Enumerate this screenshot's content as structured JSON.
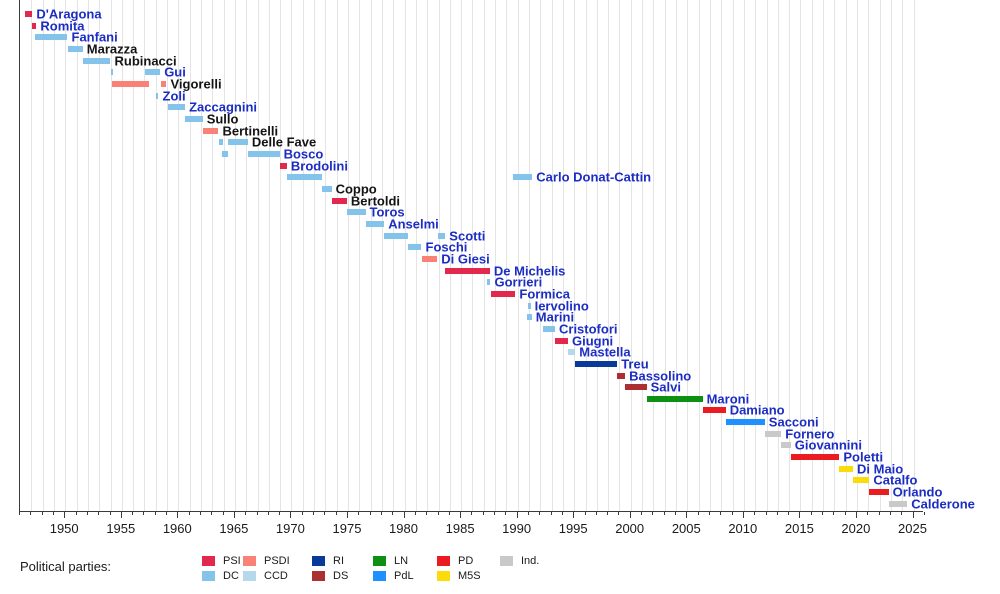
{
  "legend": {
    "title": "Political parties:",
    "rows": [
      [
        {
          "code": "PSI",
          "color": "#e2294d"
        },
        {
          "code": "PSDI",
          "color": "#fa8175"
        },
        {
          "code": "RI",
          "color": "#0a3a99"
        },
        {
          "code": "LN",
          "color": "#0d9014"
        },
        {
          "code": "PD",
          "color": "#ea1c22"
        },
        {
          "code": "Ind.",
          "color": "#c9c9c9"
        }
      ],
      [
        {
          "code": "DC",
          "color": "#85c4ea"
        },
        {
          "code": "CCD",
          "color": "#b5d8ed"
        },
        {
          "code": "DS",
          "color": "#ac2f32"
        },
        {
          "code": "PdL",
          "color": "#1e90ff"
        },
        {
          "code": "M5S",
          "color": "#fbdb09"
        }
      ]
    ]
  },
  "chart_data": {
    "type": "timeline",
    "xlim": [
      1946,
      2026
    ],
    "x_axis": {
      "major_ticks": [
        "1950",
        "1955",
        "1960",
        "1965",
        "1970",
        "1975",
        "1980",
        "1985",
        "1990",
        "1995",
        "2000",
        "2005",
        "2010",
        "2015",
        "2020",
        "2025"
      ],
      "minor_tick_interval_years": 1,
      "grid": "vertical, one line per year"
    },
    "party_colors": {
      "PSI": "#e2294d",
      "DC": "#85c4ea",
      "PSDI": "#fa8175",
      "CCD": "#b5d8ed",
      "RI": "#0a3a99",
      "DS": "#ac2f32",
      "LN": "#0d9014",
      "PdL": "#1e90ff",
      "PD": "#ea1c22",
      "M5S": "#fbdb09",
      "Ind.": "#c9c9c9"
    },
    "label_colors": {
      "link": "#1c2dc4",
      "plain": "#141414"
    },
    "ministers": [
      {
        "name": "D'Aragona",
        "party": "PSI",
        "link": true,
        "terms": [
          [
            1946.45,
            1947.1
          ]
        ]
      },
      {
        "name": "Romita",
        "party": "PSI",
        "link": true,
        "terms": [
          [
            1947.1,
            1947.45
          ]
        ]
      },
      {
        "name": "Fanfani",
        "party": "DC",
        "link": true,
        "terms": [
          [
            1947.3,
            1950.2
          ]
        ]
      },
      {
        "name": "Marazza",
        "party": "DC",
        "link": false,
        "terms": [
          [
            1950.2,
            1951.55
          ]
        ]
      },
      {
        "name": "Rubinacci",
        "party": "DC",
        "link": false,
        "terms": [
          [
            1951.55,
            1954.0
          ]
        ]
      },
      {
        "name": "Gui",
        "party": "DC",
        "link": true,
        "terms": [
          [
            1954.0,
            1954.15
          ],
          [
            1957.05,
            1958.4
          ]
        ]
      },
      {
        "name": "Vigorelli",
        "party": "PSDI",
        "link": false,
        "terms": [
          [
            1954.15,
            1957.4
          ],
          [
            1958.45,
            1958.95
          ]
        ]
      },
      {
        "name": "Zoli",
        "party": "DC",
        "link": true,
        "terms": [
          [
            1958.0,
            1958.25
          ]
        ]
      },
      {
        "name": "Zaccagnini",
        "party": "DC",
        "link": true,
        "terms": [
          [
            1959.1,
            1960.6
          ]
        ]
      },
      {
        "name": "Sullo",
        "party": "DC",
        "link": false,
        "terms": [
          [
            1960.6,
            1962.15
          ]
        ]
      },
      {
        "name": "Bertinelli",
        "party": "PSDI",
        "link": false,
        "terms": [
          [
            1962.15,
            1963.55
          ]
        ]
      },
      {
        "name": "Delle Fave",
        "party": "DC",
        "link": false,
        "terms": [
          [
            1963.55,
            1963.9
          ],
          [
            1964.4,
            1966.15
          ]
        ]
      },
      {
        "name": "Bosco",
        "party": "DC",
        "link": true,
        "terms": [
          [
            1963.9,
            1964.4
          ],
          [
            1966.15,
            1968.95
          ]
        ]
      },
      {
        "name": "Brodolini",
        "party": "PSI",
        "link": true,
        "terms": [
          [
            1968.95,
            1969.6
          ]
        ]
      },
      {
        "name": "Carlo Donat-Cattin",
        "party": "DC",
        "link": true,
        "terms": [
          [
            1969.6,
            1972.7
          ],
          [
            1989.55,
            1991.3
          ]
        ]
      },
      {
        "name": "Coppo",
        "party": "DC",
        "link": false,
        "terms": [
          [
            1972.7,
            1973.55
          ]
        ]
      },
      {
        "name": "Bertoldi",
        "party": "PSI",
        "link": false,
        "terms": [
          [
            1973.55,
            1974.9
          ]
        ]
      },
      {
        "name": "Toros",
        "party": "DC",
        "link": true,
        "terms": [
          [
            1974.9,
            1976.55
          ]
        ]
      },
      {
        "name": "Anselmi",
        "party": "DC",
        "link": true,
        "terms": [
          [
            1976.55,
            1978.2
          ]
        ]
      },
      {
        "name": "Scotti",
        "party": "DC",
        "link": true,
        "terms": [
          [
            1978.2,
            1980.3
          ],
          [
            1982.95,
            1983.6
          ]
        ]
      },
      {
        "name": "Foschi",
        "party": "DC",
        "link": true,
        "terms": [
          [
            1980.3,
            1981.5
          ]
        ]
      },
      {
        "name": "Di Giesi",
        "party": "PSDI",
        "link": true,
        "terms": [
          [
            1981.55,
            1982.9
          ]
        ]
      },
      {
        "name": "De Michelis",
        "party": "PSI",
        "link": true,
        "terms": [
          [
            1983.6,
            1987.55
          ]
        ]
      },
      {
        "name": "Gorrieri",
        "party": "DC",
        "link": true,
        "terms": [
          [
            1987.3,
            1987.6
          ]
        ]
      },
      {
        "name": "Formica",
        "party": "PSI",
        "link": true,
        "terms": [
          [
            1987.6,
            1989.8
          ]
        ]
      },
      {
        "name": "Iervolino",
        "party": "DC",
        "link": true,
        "terms": [
          [
            1990.95,
            1991.15
          ]
        ]
      },
      {
        "name": "Marini",
        "party": "DC",
        "link": true,
        "terms": [
          [
            1990.85,
            1991.25
          ]
        ]
      },
      {
        "name": "Cristofori",
        "party": "DC",
        "link": true,
        "terms": [
          [
            1992.25,
            1993.3
          ]
        ]
      },
      {
        "name": "Giugni",
        "party": "PSI",
        "link": true,
        "terms": [
          [
            1993.3,
            1994.45
          ]
        ]
      },
      {
        "name": "Mastella",
        "party": "CCD",
        "link": true,
        "terms": [
          [
            1994.45,
            1995.1
          ]
        ]
      },
      {
        "name": "Treu",
        "party": "RI",
        "link": true,
        "terms": [
          [
            1995.1,
            1998.8
          ]
        ]
      },
      {
        "name": "Bassolino",
        "party": "DS",
        "link": true,
        "terms": [
          [
            1998.8,
            1999.5
          ]
        ]
      },
      {
        "name": "Salvi",
        "party": "DS",
        "link": true,
        "terms": [
          [
            1999.5,
            2001.4
          ]
        ]
      },
      {
        "name": "Maroni",
        "party": "LN",
        "link": true,
        "terms": [
          [
            2001.4,
            2006.35
          ]
        ]
      },
      {
        "name": "Damiano",
        "party": "PD",
        "link": true,
        "terms": [
          [
            2006.35,
            2008.4
          ]
        ]
      },
      {
        "name": "Sacconi",
        "party": "PdL",
        "link": true,
        "terms": [
          [
            2008.4,
            2011.85
          ]
        ]
      },
      {
        "name": "Fornero",
        "party": "Ind.",
        "link": true,
        "terms": [
          [
            2011.85,
            2013.3
          ]
        ]
      },
      {
        "name": "Giovannini",
        "party": "Ind.",
        "link": true,
        "terms": [
          [
            2013.3,
            2014.15
          ]
        ]
      },
      {
        "name": "Poletti",
        "party": "PD",
        "link": true,
        "terms": [
          [
            2014.15,
            2018.45
          ]
        ]
      },
      {
        "name": "Di Maio",
        "party": "M5S",
        "link": true,
        "terms": [
          [
            2018.45,
            2019.65
          ]
        ]
      },
      {
        "name": "Catalfo",
        "party": "M5S",
        "link": true,
        "terms": [
          [
            2019.65,
            2021.1
          ]
        ]
      },
      {
        "name": "Orlando",
        "party": "PD",
        "link": true,
        "terms": [
          [
            2021.1,
            2022.8
          ]
        ]
      },
      {
        "name": "Calderone",
        "party": "Ind.",
        "link": true,
        "terms": [
          [
            2022.8,
            2024.45
          ]
        ]
      }
    ]
  }
}
